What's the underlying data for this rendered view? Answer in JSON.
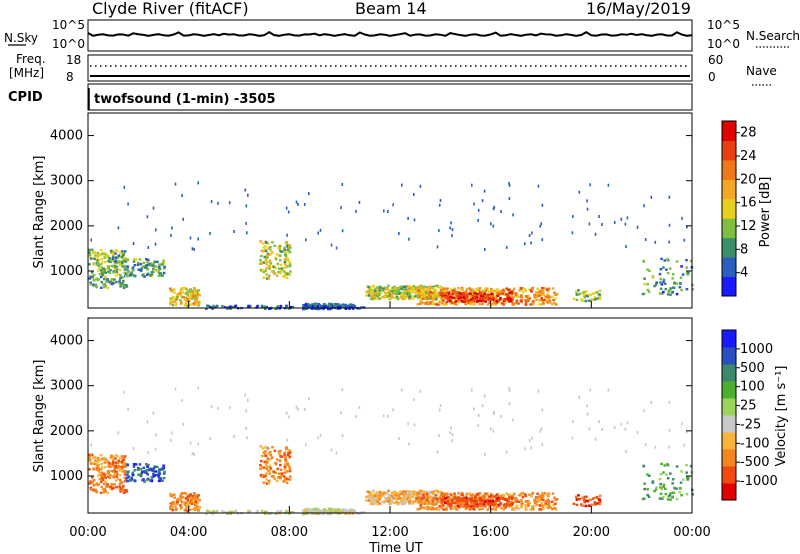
{
  "header": {
    "title_left": "Clyde River (fitACF)",
    "title_center": "Beam 14",
    "title_right": "16/May/2019"
  },
  "strips": {
    "nsky_label": "N.Sky",
    "nsearch_label": "N.Search",
    "noise_ticks": [
      "10^5",
      "10^0"
    ],
    "freq_label_line1": "Freq.",
    "freq_label_line2": "[MHz]",
    "freq_ticks": [
      "18",
      "8"
    ],
    "nave_label": "Nave",
    "nave_ticks": [
      "60",
      "0"
    ],
    "cpid_label": "CPID",
    "cpid_value": "twofsound (1-min) -3505"
  },
  "colors": {
    "power": [
      "#1a1aff",
      "#2a5fbf",
      "#3a8f6a",
      "#7fbf3f",
      "#e6d21a",
      "#f5a623",
      "#f07818",
      "#e84010",
      "#e00000"
    ],
    "velocity": [
      "#e00000",
      "#f04a10",
      "#f5861e",
      "#f9b33a",
      "#c8c8c8",
      "#9ad45a",
      "#4caf2e",
      "#3a8a6a",
      "#2a50c0",
      "#1a1aff"
    ],
    "background": "#ffffff"
  },
  "chart_data": [
    {
      "type": "heatmap",
      "panel": "power",
      "title": "Beam 14",
      "ylabel": "Slant Range [km]",
      "y_ticks": [
        "1000",
        "2000",
        "3000",
        "4000"
      ],
      "ylim": [
        180,
        4500
      ],
      "xlabel": "Time UT",
      "x_ticks": [
        "00:00",
        "04:00",
        "08:00",
        "12:00",
        "16:00",
        "20:00",
        "00:00"
      ],
      "xlim_hours": [
        0,
        24
      ],
      "colorbar_label": "Power [dB]",
      "colorbar_ticks": [
        "4",
        "8",
        "12",
        "16",
        "20",
        "24",
        "28"
      ],
      "colorbar_range": [
        0,
        30
      ]
    },
    {
      "type": "heatmap",
      "panel": "velocity",
      "ylabel": "Slant Range [km]",
      "y_ticks": [
        "1000",
        "2000",
        "3000",
        "4000"
      ],
      "ylim": [
        180,
        4500
      ],
      "xlabel": "Time UT",
      "x_ticks": [
        "00:00",
        "04:00",
        "08:00",
        "12:00",
        "16:00",
        "20:00",
        "00:00"
      ],
      "xlim_hours": [
        0,
        24
      ],
      "colorbar_label": "Velocity [m s⁻¹]",
      "colorbar_ticks": [
        "-1000",
        "-500",
        "-100",
        "-25",
        "25",
        "100",
        "500",
        "1000"
      ]
    }
  ]
}
